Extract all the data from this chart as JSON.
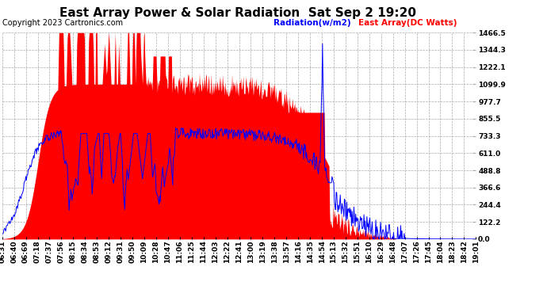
{
  "title": "East Array Power & Solar Radiation  Sat Sep 2 19:20",
  "copyright": "Copyright 2023 Cartronics.com",
  "legend_radiation": "Radiation(w/m2)",
  "legend_east": "East Array(DC Watts)",
  "y_ticks": [
    0.0,
    122.2,
    244.4,
    366.6,
    488.8,
    611.0,
    733.3,
    855.5,
    977.7,
    1099.9,
    1222.1,
    1344.3,
    1466.5
  ],
  "ylim": [
    0,
    1466.5
  ],
  "x_labels": [
    "06:31",
    "06:40",
    "06:69",
    "07:18",
    "07:37",
    "07:56",
    "08:15",
    "08:34",
    "08:53",
    "09:12",
    "09:31",
    "09:50",
    "10:09",
    "10:28",
    "10:47",
    "11:06",
    "11:25",
    "11:44",
    "12:03",
    "12:22",
    "12:41",
    "13:00",
    "13:19",
    "13:38",
    "13:57",
    "14:16",
    "14:35",
    "14:54",
    "15:13",
    "15:32",
    "15:51",
    "16:10",
    "16:29",
    "16:48",
    "17:07",
    "17:26",
    "17:45",
    "18:04",
    "18:23",
    "18:42",
    "19:01"
  ],
  "bg_color": "#ffffff",
  "plot_bg": "#ffffff",
  "radiation_color": "#0000ff",
  "east_color": "#ff0000",
  "grid_color": "#aaaaaa",
  "title_fontsize": 11,
  "tick_fontsize": 6.5,
  "copyright_fontsize": 7
}
